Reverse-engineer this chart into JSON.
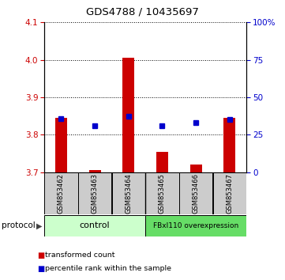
{
  "title": "GDS4788 / 10435697",
  "samples": [
    "GSM853462",
    "GSM853463",
    "GSM853464",
    "GSM853465",
    "GSM853466",
    "GSM853467"
  ],
  "red_values": [
    3.845,
    3.705,
    4.005,
    3.755,
    3.72,
    3.845
  ],
  "red_base": 3.7,
  "blue_values": [
    3.843,
    3.825,
    3.85,
    3.825,
    3.832,
    3.84
  ],
  "ylim_left": [
    3.7,
    4.1
  ],
  "ylim_right": [
    0,
    100
  ],
  "yticks_left": [
    3.7,
    3.8,
    3.9,
    4.0,
    4.1
  ],
  "yticks_right": [
    0,
    25,
    50,
    75,
    100
  ],
  "yticklabels_right": [
    "0",
    "25",
    "50",
    "75",
    "100%"
  ],
  "left_tick_color": "#cc0000",
  "right_tick_color": "#0000cc",
  "protocol_label": "protocol",
  "legend_red": "transformed count",
  "legend_blue": "percentile rank within the sample",
  "control_color": "#ccffcc",
  "overexp_color": "#66dd66",
  "gray_color": "#cccccc",
  "bar_color": "#cc0000",
  "dot_color": "#0000cc",
  "bar_width": 0.35
}
